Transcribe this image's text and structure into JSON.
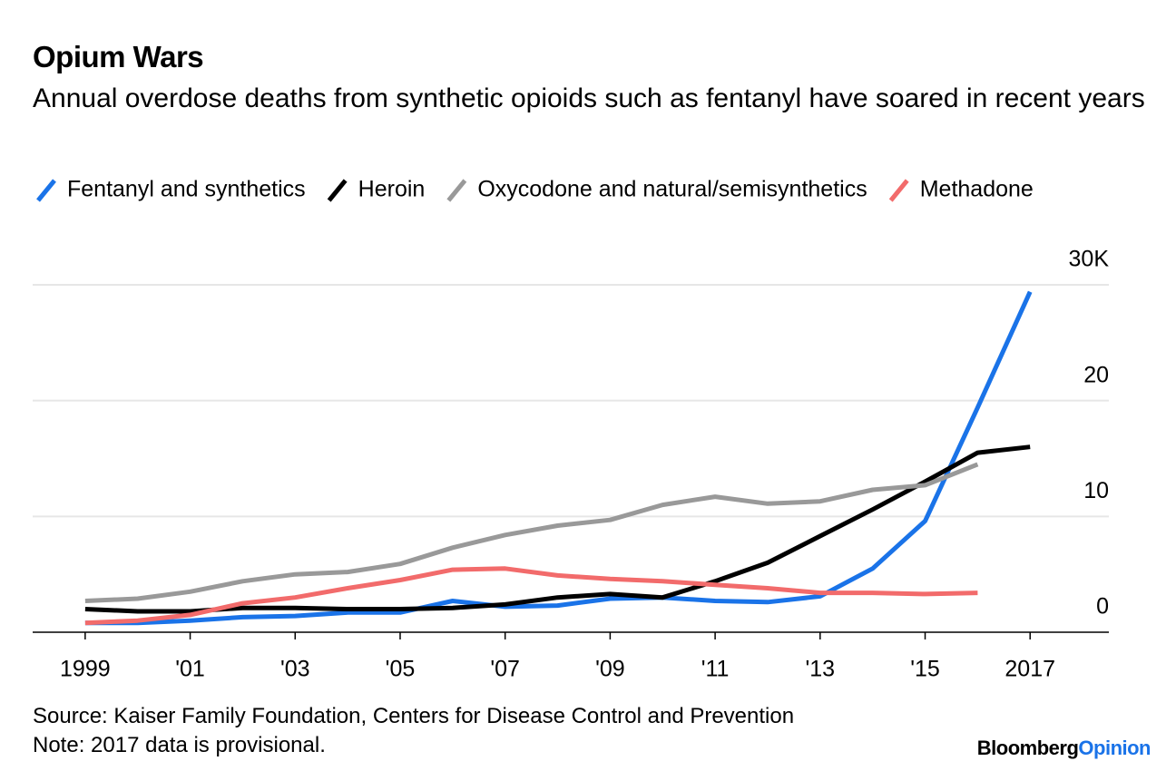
{
  "chart_data": {
    "type": "line",
    "title": "Opium Wars",
    "subtitle": "Annual overdose deaths from synthetic opioids such as fentanyl have soared in recent years",
    "x": [
      1999,
      2000,
      2001,
      2002,
      2003,
      2004,
      2005,
      2006,
      2007,
      2008,
      2009,
      2010,
      2011,
      2012,
      2013,
      2014,
      2015,
      2016,
      2017
    ],
    "xlim": [
      1998,
      2018.5
    ],
    "xticks": [
      1999,
      {
        "value": 2001,
        "label": "'01"
      },
      {
        "value": 2003,
        "label": "'03"
      },
      {
        "value": 2005,
        "label": "'05"
      },
      {
        "value": 2007,
        "label": "'07"
      },
      {
        "value": 2009,
        "label": "'09"
      },
      {
        "value": 2011,
        "label": "'11"
      },
      {
        "value": 2013,
        "label": "'13"
      },
      {
        "value": 2015,
        "label": "'15"
      },
      2017
    ],
    "ylim": [
      0,
      30
    ],
    "yticks": [
      0,
      10,
      20,
      {
        "value": 30,
        "label": "30K"
      }
    ],
    "grid": true,
    "series": [
      {
        "name": "Fentanyl and synthetics",
        "color": "#1a73e8",
        "values": [
          0.8,
          0.8,
          1.0,
          1.3,
          1.4,
          1.7,
          1.7,
          2.7,
          2.2,
          2.3,
          2.9,
          3.0,
          2.7,
          2.6,
          3.1,
          5.5,
          9.6,
          19.4,
          29.4
        ]
      },
      {
        "name": "Heroin",
        "color": "#000000",
        "values": [
          2.0,
          1.8,
          1.8,
          2.1,
          2.1,
          2.0,
          2.0,
          2.1,
          2.4,
          3.0,
          3.3,
          3.0,
          4.4,
          6.0,
          8.3,
          10.6,
          13.0,
          15.5,
          16.0
        ]
      },
      {
        "name": "Oxycodone and natural/semisynthetics",
        "color": "#999999",
        "values": [
          2.7,
          2.9,
          3.5,
          4.4,
          5.0,
          5.2,
          5.9,
          7.3,
          8.4,
          9.2,
          9.7,
          11.0,
          11.7,
          11.1,
          11.3,
          12.3,
          12.7,
          14.5,
          null
        ]
      },
      {
        "name": "Methadone",
        "color": "#f26b6b",
        "values": [
          0.8,
          1.0,
          1.5,
          2.5,
          3.0,
          3.8,
          4.5,
          5.4,
          5.5,
          4.9,
          4.6,
          4.4,
          4.1,
          3.8,
          3.4,
          3.4,
          3.3,
          3.4,
          null
        ]
      }
    ],
    "source": "Source: Kaiser Family Foundation, Centers for Disease Control and Prevention",
    "note": "Note: 2017 data is provisional.",
    "brand": {
      "name": "Bloomberg",
      "section": "Opinion"
    }
  }
}
